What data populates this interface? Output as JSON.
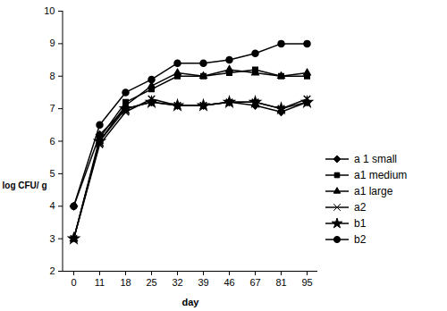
{
  "chart_data": {
    "type": "line",
    "x_label": "day",
    "y_label": "log CFU/ g",
    "categories": [
      "0",
      "11",
      "18",
      "25",
      "32",
      "39",
      "46",
      "67",
      "81",
      "95"
    ],
    "ylim": [
      2,
      10
    ],
    "yticks": [
      2,
      3,
      4,
      5,
      6,
      7,
      8,
      9,
      10
    ],
    "grid": false,
    "legend": "right",
    "series": [
      {
        "name": "a 1 small",
        "color": "#000000",
        "marker": "diamond",
        "values": [
          4,
          6.2,
          7.0,
          7.2,
          7.1,
          7.1,
          7.2,
          7.1,
          6.9,
          7.2
        ]
      },
      {
        "name": "a1 medium",
        "color": "#000000",
        "marker": "square",
        "values": [
          3,
          6.1,
          7.2,
          7.6,
          8.0,
          8.0,
          8.1,
          8.2,
          8.0,
          8.0
        ]
      },
      {
        "name": "a1 large",
        "color": "#000000",
        "marker": "triangle",
        "values": [
          3,
          6.0,
          7.1,
          7.7,
          8.1,
          8.0,
          8.2,
          8.1,
          8.0,
          8.1
        ]
      },
      {
        "name": "a2",
        "color": "#000000",
        "marker": "x",
        "values": [
          3,
          5.9,
          6.9,
          7.3,
          7.1,
          7.1,
          7.2,
          7.2,
          7.0,
          7.3
        ]
      },
      {
        "name": "b1",
        "color": "#000000",
        "marker": "star",
        "values": [
          3,
          6.0,
          7.0,
          7.2,
          7.1,
          7.1,
          7.2,
          7.2,
          7.0,
          7.2
        ]
      },
      {
        "name": "b2",
        "color": "#000000",
        "marker": "circle",
        "values": [
          4,
          6.5,
          7.5,
          7.9,
          8.4,
          8.4,
          8.5,
          8.7,
          9.0,
          9.0
        ]
      }
    ]
  }
}
